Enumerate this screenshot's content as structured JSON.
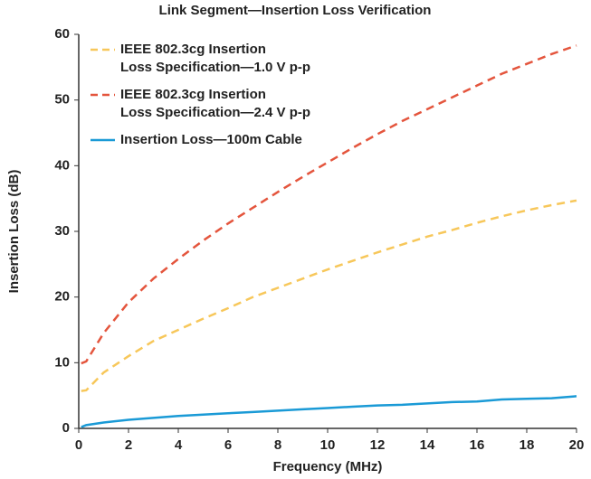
{
  "chart_data": {
    "type": "line",
    "title": "Link Segment—Insertion Loss Verification",
    "xlabel": "Frequency (MHz)",
    "ylabel": "Insertion Loss (dB)",
    "x": [
      0.1,
      0.3,
      1,
      2,
      3,
      4,
      5,
      6,
      7,
      8,
      9,
      10,
      11,
      12,
      13,
      14,
      15,
      16,
      17,
      18,
      19,
      20
    ],
    "series": [
      {
        "name": "IEEE 802.3cg Insertion\nLoss Specification—1.0 V p-p",
        "color": "#f7c75a",
        "dashed": true,
        "values": [
          5.7,
          5.8,
          8.5,
          11,
          13.3,
          15,
          16.7,
          18.3,
          20,
          21.4,
          22.8,
          24.2,
          25.5,
          26.8,
          28,
          29.2,
          30.2,
          31.3,
          32.3,
          33.2,
          34,
          34.7
        ]
      },
      {
        "name": "IEEE 802.3cg Insertion\nLoss Specification—2.4 V p-p",
        "color": "#e4553d",
        "dashed": true,
        "values": [
          9.9,
          10.2,
          14.5,
          19.2,
          22.8,
          25.8,
          28.6,
          31.2,
          33.6,
          36,
          38.3,
          40.5,
          42.7,
          44.8,
          46.8,
          48.6,
          50.4,
          52.2,
          54,
          55.5,
          57,
          58.3
        ]
      },
      {
        "name": "Insertion Loss—100m Cable",
        "color": "#1a9ad6",
        "dashed": false,
        "values": [
          0.2,
          0.5,
          0.9,
          1.3,
          1.6,
          1.9,
          2.1,
          2.3,
          2.5,
          2.7,
          2.9,
          3.1,
          3.3,
          3.5,
          3.6,
          3.8,
          4.0,
          4.1,
          4.4,
          4.5,
          4.6,
          4.9
        ]
      }
    ],
    "xlim": [
      0,
      20
    ],
    "xticks": [
      0,
      2,
      4,
      6,
      8,
      10,
      12,
      14,
      16,
      18,
      20
    ],
    "ylim": [
      0,
      60
    ],
    "yticks": [
      0,
      10,
      20,
      30,
      40,
      50,
      60
    ],
    "grid": false,
    "legend": "upper left"
  }
}
